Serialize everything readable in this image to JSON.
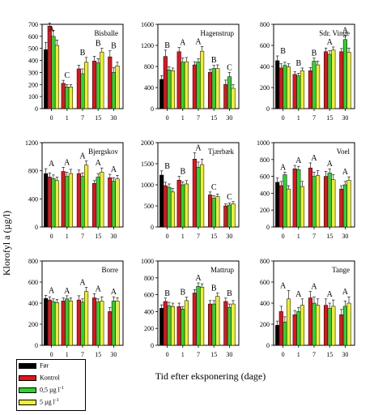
{
  "figure": {
    "ylabel": "Klorofyl a (µg/l)",
    "xlabel": "Tid efter eksponering (dage)"
  },
  "legend": [
    {
      "name": "Før",
      "color": "#000000",
      "sup": ""
    },
    {
      "name": "Kontrol",
      "color": "#e0141e",
      "sup": ""
    },
    {
      "name": "0,5 µg l",
      "color": "#2fd12f",
      "sup": "-1"
    },
    {
      "name": "5 µg l",
      "color": "#eeee30",
      "sup": "-1"
    }
  ],
  "chart_data": [
    {
      "type": "bar",
      "title": "Bisballe",
      "categories": [
        "0",
        "1",
        "7",
        "15",
        "30"
      ],
      "ylim": [
        0,
        700
      ],
      "yticks": [
        0,
        100,
        200,
        300,
        400,
        500,
        600,
        700
      ],
      "series": [
        {
          "name": "Før",
          "values": [
            490,
            0,
            0,
            0,
            0
          ]
        },
        {
          "name": "Kontrol",
          "values": [
            685,
            210,
            330,
            395,
            430
          ]
        },
        {
          "name": "0,5 µg l-1",
          "values": [
            600,
            180,
            290,
            380,
            300
          ]
        },
        {
          "name": "5 µg l-1",
          "values": [
            525,
            180,
            385,
            470,
            355
          ]
        }
      ],
      "errors": [
        [
          60,
          0,
          0,
          0,
          0
        ],
        [
          25,
          25,
          30,
          40,
          50
        ],
        [
          50,
          20,
          40,
          35,
          40
        ],
        [
          45,
          20,
          40,
          30,
          30
        ]
      ],
      "letters": [
        "A",
        "C",
        "B",
        "B",
        "B"
      ]
    },
    {
      "type": "bar",
      "title": "Hagenstrup",
      "categories": [
        "0",
        "1",
        "7",
        "15",
        "30"
      ],
      "ylim": [
        0,
        1600
      ],
      "yticks": [
        0,
        400,
        800,
        1200,
        1600
      ],
      "series": [
        {
          "name": "Før",
          "values": [
            555,
            0,
            0,
            0,
            0
          ]
        },
        {
          "name": "Kontrol",
          "values": [
            990,
            1080,
            830,
            690,
            460
          ]
        },
        {
          "name": "0,5 µg l-1",
          "values": [
            735,
            880,
            885,
            760,
            605
          ]
        },
        {
          "name": "5 µg l-1",
          "values": [
            720,
            890,
            1090,
            760,
            385
          ]
        }
      ],
      "errors": [
        [
          70,
          0,
          0,
          0,
          0
        ],
        [
          120,
          80,
          60,
          60,
          80
        ],
        [
          60,
          80,
          60,
          60,
          80
        ],
        [
          50,
          80,
          90,
          70,
          70
        ]
      ],
      "letters": [
        "B",
        "A",
        "A",
        "B",
        "C"
      ]
    },
    {
      "type": "bar",
      "title": "Sdr. Vinge",
      "categories": [
        "0",
        "1",
        "7",
        "15",
        "30"
      ],
      "ylim": [
        0,
        800
      ],
      "yticks": [
        0,
        200,
        400,
        600,
        800
      ],
      "series": [
        {
          "name": "Før",
          "values": [
            455,
            0,
            0,
            0,
            0
          ]
        },
        {
          "name": "Kontrol",
          "values": [
            385,
            325,
            360,
            540,
            540
          ]
        },
        {
          "name": "0,5 µg l-1",
          "values": [
            410,
            310,
            450,
            515,
            655
          ]
        },
        {
          "name": "5 µg l-1",
          "values": [
            395,
            360,
            415,
            555,
            535
          ]
        }
      ],
      "errors": [
        [
          45,
          0,
          0,
          0,
          0
        ],
        [
          40,
          25,
          30,
          35,
          30
        ],
        [
          30,
          25,
          30,
          35,
          40
        ],
        [
          30,
          25,
          35,
          30,
          40
        ]
      ],
      "letters": [
        "B",
        "B",
        "B",
        "A",
        "A"
      ]
    },
    {
      "type": "bar",
      "title": "Bjergskov",
      "categories": [
        "0",
        "1",
        "7",
        "15",
        "30"
      ],
      "ylim": [
        0,
        1200
      ],
      "yticks": [
        0,
        400,
        800,
        1200
      ],
      "series": [
        {
          "name": "Før",
          "values": [
            760,
            0,
            0,
            0,
            0
          ]
        },
        {
          "name": "Kontrol",
          "values": [
            710,
            790,
            760,
            620,
            700
          ]
        },
        {
          "name": "0,5 µg l-1",
          "values": [
            690,
            720,
            720,
            710,
            650
          ]
        },
        {
          "name": "5 µg l-1",
          "values": [
            660,
            760,
            880,
            780,
            685
          ]
        }
      ],
      "errors": [
        [
          70,
          0,
          0,
          0,
          0
        ],
        [
          60,
          60,
          50,
          40,
          50
        ],
        [
          50,
          60,
          50,
          50,
          50
        ],
        [
          50,
          60,
          60,
          60,
          50
        ]
      ],
      "letters": [
        "A",
        "A",
        "A",
        "A",
        "A"
      ]
    },
    {
      "type": "bar",
      "title": "Tjærbæk",
      "categories": [
        "0",
        "1",
        "7",
        "15",
        "30"
      ],
      "ylim": [
        0,
        2000
      ],
      "yticks": [
        0,
        500,
        1000,
        1500,
        2000
      ],
      "series": [
        {
          "name": "Før",
          "values": [
            1230,
            0,
            0,
            0,
            0
          ]
        },
        {
          "name": "Kontrol",
          "values": [
            980,
            1110,
            1610,
            760,
            500
          ]
        },
        {
          "name": "0,5 µg l-1",
          "values": [
            940,
            1000,
            1420,
            680,
            520
          ]
        },
        {
          "name": "5 µg l-1",
          "values": [
            830,
            1020,
            1480,
            720,
            550
          ]
        }
      ],
      "errors": [
        [
          100,
          0,
          0,
          0,
          0
        ],
        [
          80,
          90,
          150,
          70,
          50
        ],
        [
          80,
          70,
          120,
          60,
          50
        ],
        [
          80,
          80,
          130,
          60,
          50
        ]
      ],
      "letters": [
        "B",
        "B",
        "A",
        "C",
        "C"
      ]
    },
    {
      "type": "bar",
      "title": "Voel",
      "categories": [
        "0",
        "1",
        "7",
        "15",
        "30"
      ],
      "ylim": [
        0,
        1000
      ],
      "yticks": [
        0,
        200,
        400,
        600,
        800,
        1000
      ],
      "series": [
        {
          "name": "Før",
          "values": [
            530,
            0,
            0,
            0,
            0
          ]
        },
        {
          "name": "Kontrol",
          "values": [
            490,
            690,
            700,
            600,
            450
          ]
        },
        {
          "name": "0,5 µg l-1",
          "values": [
            620,
            680,
            600,
            640,
            500
          ]
        },
        {
          "name": "5 µg l-1",
          "values": [
            450,
            480,
            610,
            560,
            555
          ]
        }
      ],
      "errors": [
        [
          50,
          0,
          0,
          0,
          0
        ],
        [
          50,
          40,
          60,
          60,
          40
        ],
        [
          30,
          40,
          50,
          50,
          40
        ],
        [
          40,
          60,
          60,
          60,
          40
        ]
      ],
      "letters": [
        "A",
        "A",
        "A",
        "A",
        "A"
      ]
    },
    {
      "type": "bar",
      "title": "Borre",
      "categories": [
        "0",
        "1",
        "7",
        "15",
        "30"
      ],
      "ylim": [
        0,
        800
      ],
      "yticks": [
        0,
        200,
        400,
        600,
        800
      ],
      "series": [
        {
          "name": "Før",
          "values": [
            445,
            0,
            0,
            0,
            0
          ]
        },
        {
          "name": "Kontrol",
          "values": [
            430,
            420,
            430,
            450,
            320
          ]
        },
        {
          "name": "0,5 µg l-1",
          "values": [
            415,
            440,
            410,
            410,
            420
          ]
        },
        {
          "name": "5 µg l-1",
          "values": [
            405,
            420,
            510,
            420,
            420
          ]
        }
      ],
      "errors": [
        [
          30,
          0,
          0,
          0,
          0
        ],
        [
          30,
          30,
          40,
          40,
          40
        ],
        [
          25,
          30,
          30,
          30,
          40
        ],
        [
          30,
          30,
          40,
          40,
          30
        ]
      ],
      "letters": [
        "A",
        "A",
        "A",
        "A",
        "A"
      ]
    },
    {
      "type": "bar",
      "title": "Mattrup",
      "categories": [
        "0",
        "1",
        "7",
        "15",
        "30"
      ],
      "ylim": [
        0,
        1000
      ],
      "yticks": [
        0,
        200,
        400,
        600,
        800,
        1000
      ],
      "series": [
        {
          "name": "Før",
          "values": [
            440,
            0,
            0,
            0,
            0
          ]
        },
        {
          "name": "Kontrol",
          "values": [
            520,
            460,
            620,
            490,
            520
          ]
        },
        {
          "name": "0,5 µg l-1",
          "values": [
            470,
            430,
            700,
            490,
            450
          ]
        },
        {
          "name": "5 µg l-1",
          "values": [
            460,
            530,
            690,
            580,
            490
          ]
        }
      ],
      "errors": [
        [
          40,
          0,
          0,
          0,
          0
        ],
        [
          40,
          40,
          40,
          40,
          40
        ],
        [
          40,
          30,
          40,
          40,
          40
        ],
        [
          40,
          40,
          40,
          40,
          40
        ]
      ],
      "letters": [
        "B",
        "B",
        "A",
        "B",
        "B"
      ]
    },
    {
      "type": "bar",
      "title": "Tange",
      "categories": [
        "0",
        "1",
        "7",
        "15",
        "30"
      ],
      "ylim": [
        0,
        800
      ],
      "yticks": [
        0,
        200,
        400,
        600,
        800
      ],
      "series": [
        {
          "name": "Før",
          "values": [
            190,
            0,
            0,
            0,
            0
          ]
        },
        {
          "name": "Kontrol",
          "values": [
            320,
            290,
            450,
            380,
            290
          ]
        },
        {
          "name": "0,5 µg l-1",
          "values": [
            220,
            320,
            400,
            350,
            370
          ]
        },
        {
          "name": "5 µg l-1",
          "values": [
            440,
            380,
            380,
            370,
            400
          ]
        }
      ],
      "errors": [
        [
          40,
          0,
          0,
          0,
          0
        ],
        [
          50,
          40,
          60,
          60,
          50
        ],
        [
          50,
          40,
          60,
          50,
          50
        ],
        [
          80,
          60,
          60,
          60,
          60
        ]
      ],
      "letters": [
        "A",
        "A",
        "A",
        "A",
        "A"
      ]
    }
  ]
}
